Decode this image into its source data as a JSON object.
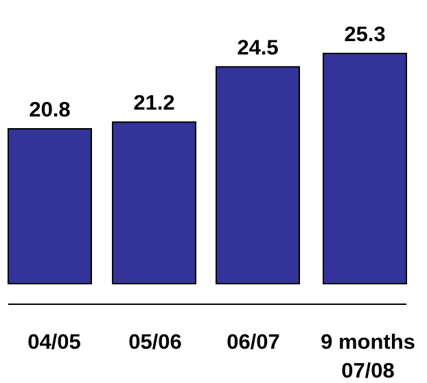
{
  "chart_data": {
    "type": "bar",
    "categories": [
      [
        "04/05"
      ],
      [
        "05/06"
      ],
      [
        "06/07"
      ],
      [
        "9 months",
        "07/08"
      ]
    ],
    "values": [
      20.8,
      21.2,
      24.5,
      25.3
    ],
    "value_labels": [
      "20.8",
      "21.2",
      "24.5",
      "25.3"
    ],
    "title": "",
    "xlabel": "",
    "ylabel": "",
    "grid": false,
    "legend": "none",
    "colors": {
      "bar_fill": "#333399",
      "bar_stroke": "#000000",
      "baseline": "#000000",
      "text": "#000000"
    }
  }
}
